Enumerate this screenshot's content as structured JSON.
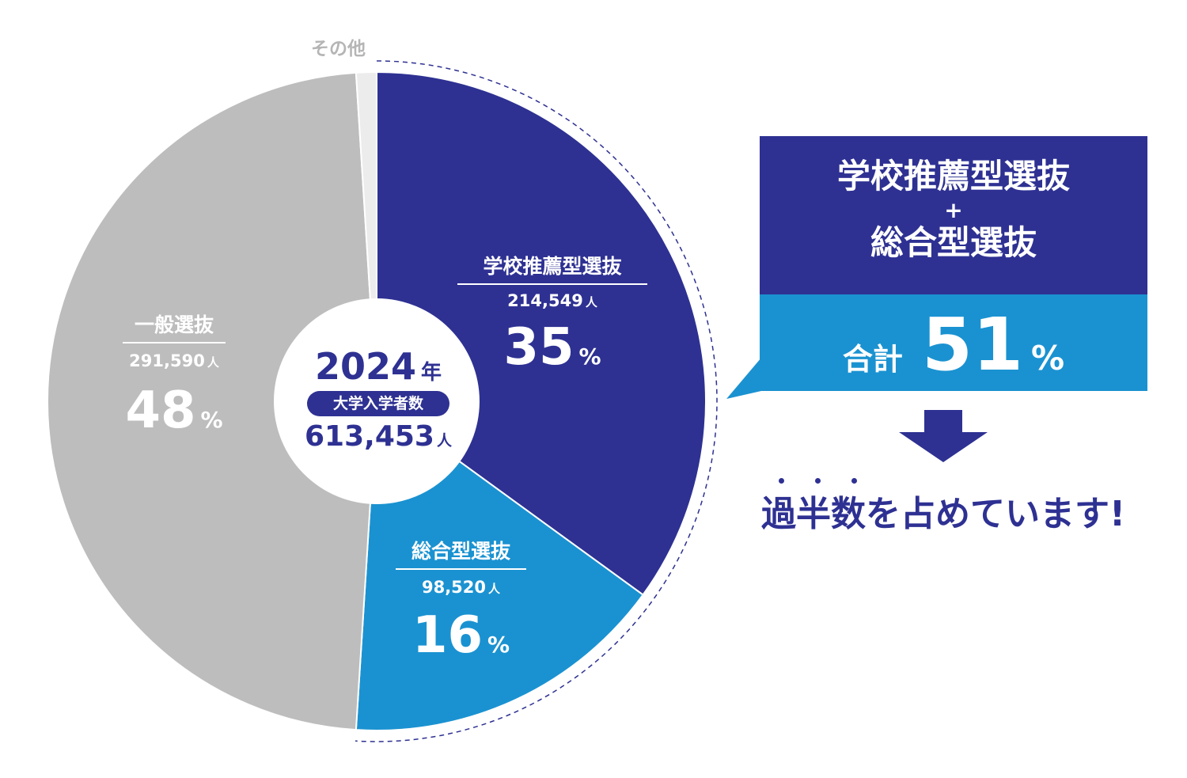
{
  "chart_data": {
    "type": "pie",
    "slices": [
      {
        "label": "学校推薦型選抜",
        "count": "214,549",
        "count_unit": "人",
        "percent": 35,
        "color": "#2e3192",
        "text_color": "#ffffff"
      },
      {
        "label": "総合型選抜",
        "count": "98,520",
        "count_unit": "人",
        "percent": 16,
        "color": "#1a92d1",
        "text_color": "#ffffff"
      },
      {
        "label": "一般選抜",
        "count": "291,590",
        "count_unit": "人",
        "percent": 48,
        "color": "#bdbdbd",
        "text_color": "#ffffff"
      },
      {
        "label": "その他",
        "percent": 1,
        "color": "#ececec",
        "text_color": "#b5b5b5"
      }
    ],
    "percent_symbol": "%"
  },
  "center": {
    "year": "2024",
    "year_unit": "年",
    "badge": "大学入学者数",
    "total": "613,453",
    "total_unit": "人"
  },
  "callout": {
    "line1": "学校推薦型選抜",
    "plus": "+",
    "line2": "総合型選抜",
    "sum_label": "合計",
    "sum_value": "51",
    "sum_unit": "%",
    "top_color": "#2e3192",
    "bottom_color": "#1a92d1"
  },
  "conclusion": {
    "text": "過半数を占めています!"
  }
}
